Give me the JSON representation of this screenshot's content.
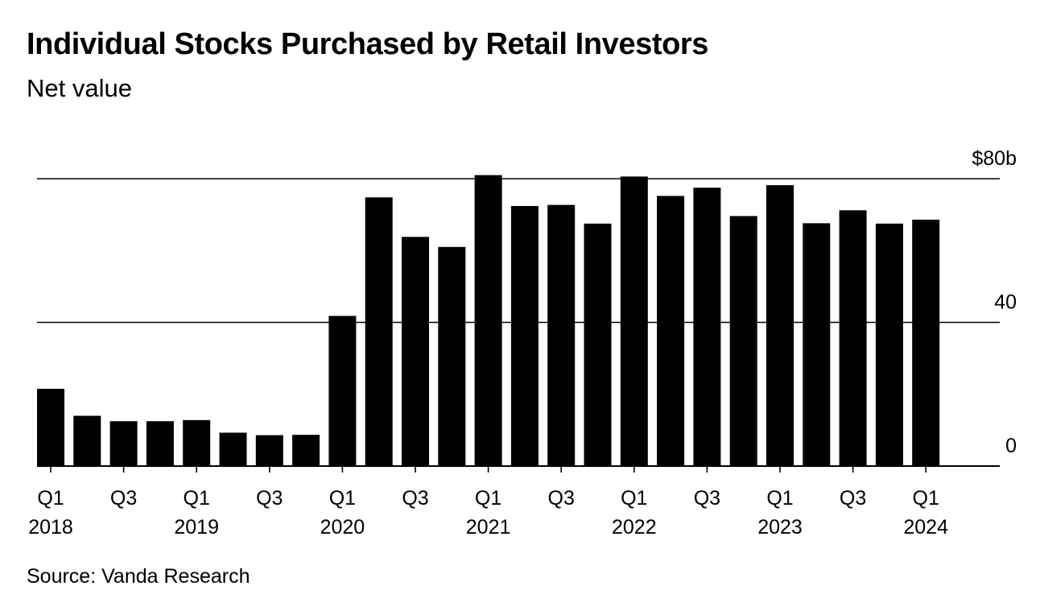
{
  "title": "Individual Stocks Purchased by Retail Investors",
  "subtitle": "Net value",
  "source": "Source: Vanda Research",
  "colors": {
    "bar": "#000000",
    "grid": "#000000",
    "background": "#ffffff"
  },
  "chart_data": {
    "type": "bar",
    "title": "Individual Stocks Purchased by Retail Investors",
    "subtitle": "Net value",
    "categories": [
      "Q1 2018",
      "Q2 2018",
      "Q3 2018",
      "Q4 2018",
      "Q1 2019",
      "Q2 2019",
      "Q3 2019",
      "Q4 2019",
      "Q1 2020",
      "Q2 2020",
      "Q3 2020",
      "Q4 2020",
      "Q1 2021",
      "Q2 2021",
      "Q3 2021",
      "Q4 2021",
      "Q1 2022",
      "Q2 2022",
      "Q3 2022",
      "Q4 2022",
      "Q1 2023",
      "Q2 2023",
      "Q3 2023",
      "Q4 2023",
      "Q1 2024"
    ],
    "values": [
      21.5,
      14,
      12.5,
      12.5,
      12.8,
      9.3,
      8.6,
      8.7,
      41.8,
      74.8,
      63.8,
      61,
      81,
      72.4,
      72.7,
      67.5,
      80.6,
      75.2,
      77.5,
      69.6,
      78.2,
      67.6,
      71.2,
      67.5,
      68.6
    ],
    "ylim": [
      0,
      80
    ],
    "yticks": [
      {
        "value": 0,
        "label": "0"
      },
      {
        "value": 40,
        "label": "40"
      },
      {
        "value": 80,
        "label": "$80b"
      }
    ],
    "xticks": [
      {
        "index": 0,
        "line1": "Q1",
        "line2": "2018"
      },
      {
        "index": 2,
        "line1": "Q3",
        "line2": ""
      },
      {
        "index": 4,
        "line1": "Q1",
        "line2": "2019"
      },
      {
        "index": 6,
        "line1": "Q3",
        "line2": ""
      },
      {
        "index": 8,
        "line1": "Q1",
        "line2": "2020"
      },
      {
        "index": 10,
        "line1": "Q3",
        "line2": ""
      },
      {
        "index": 12,
        "line1": "Q1",
        "line2": "2021"
      },
      {
        "index": 14,
        "line1": "Q3",
        "line2": ""
      },
      {
        "index": 16,
        "line1": "Q1",
        "line2": "2022"
      },
      {
        "index": 18,
        "line1": "Q3",
        "line2": ""
      },
      {
        "index": 20,
        "line1": "Q1",
        "line2": "2023"
      },
      {
        "index": 22,
        "line1": "Q3",
        "line2": ""
      },
      {
        "index": 24,
        "line1": "Q1",
        "line2": "2024"
      }
    ],
    "grid": true,
    "ylabel_position": "right"
  }
}
